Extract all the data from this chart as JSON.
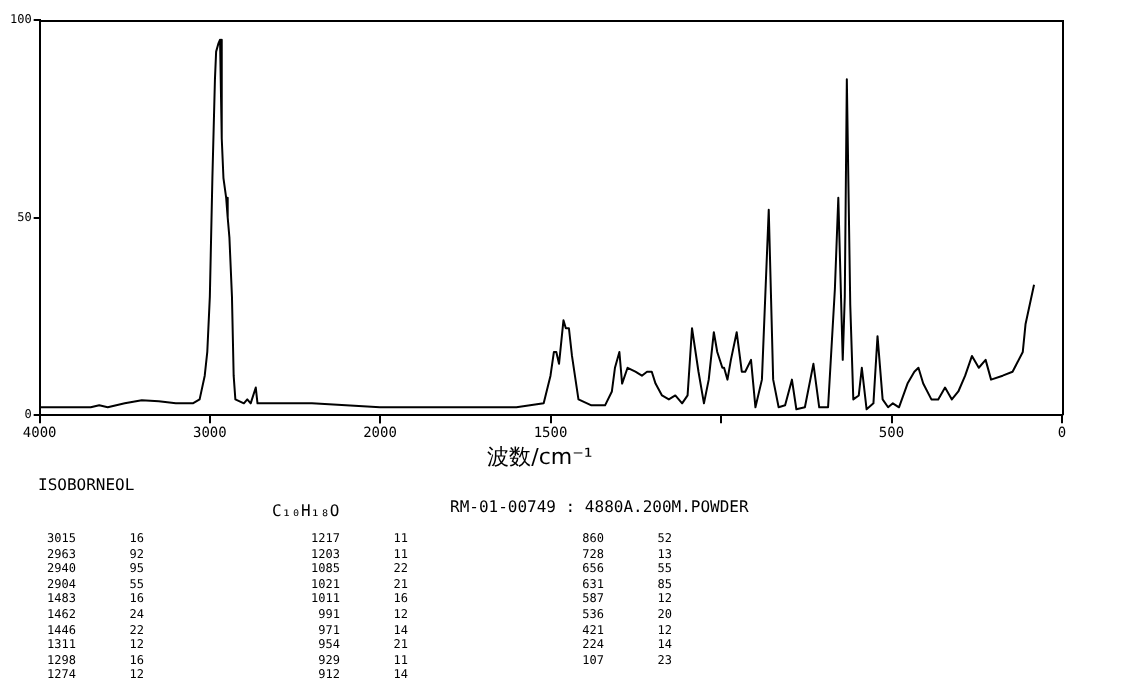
{
  "chart_data": [
    {
      "type": "line",
      "title": "ISOBORNEOL",
      "subtitle": "C₁₀H₁₈O",
      "annotations": [
        "RM-01-00749 : 4880A.200M.POWDER",
        "3015 16",
        "2963 92",
        "2940 95",
        "2904 55",
        "1483 16",
        "1462 24",
        "1446 22",
        "1311 12",
        "1298 16",
        "1274 12",
        "1217 11",
        "1203 11",
        "1085 22",
        "1021 21",
        "1011 16",
        "991 12",
        "971 14",
        "954 21",
        "929 11",
        "912 14",
        "860 52",
        "728 13",
        "656 55",
        "631 85",
        "587 12",
        "536 20",
        "421 12",
        "224 14",
        "107 23"
      ],
      "x": [
        4000,
        3700,
        3650,
        3600,
        3500,
        3400,
        3300,
        3200,
        3100,
        3060,
        3030,
        3015,
        3000,
        2985,
        2970,
        2963,
        2950,
        2940,
        2930,
        2920,
        2904,
        2895,
        2885,
        2870,
        2860,
        2850,
        2800,
        2780,
        2760,
        2730,
        2720,
        2600,
        2400,
        2200,
        2000
      ],
      "values": [
        2,
        2,
        2.5,
        2,
        3,
        3.8,
        3.5,
        3,
        3,
        4,
        10,
        16,
        30,
        60,
        85,
        92,
        94,
        95,
        70,
        60,
        55,
        50,
        45,
        30,
        10,
        4,
        3,
        4,
        3,
        7,
        3,
        3,
        3,
        2.5,
        2
      ],
      "color": "#000000",
      "marker": "none",
      "line_style": "solid",
      "grid": false,
      "legend": false,
      "xlim": [
        4000,
        2000
      ],
      "xticks": [
        4000,
        3000,
        {
          "value": 2000,
          "label": null
        }
      ],
      "ylim": [
        0,
        100
      ],
      "yticks": [
        0,
        50,
        100
      ]
    },
    {
      "type": "line",
      "xlabel": "波数/cm⁻¹",
      "x": [
        2000,
        1800,
        1600,
        1520,
        1500,
        1490,
        1483,
        1475,
        1462,
        1455,
        1446,
        1437,
        1418,
        1380,
        1340,
        1320,
        1311,
        1298,
        1290,
        1274,
        1251,
        1232,
        1217,
        1203,
        1192,
        1173,
        1153,
        1134,
        1114,
        1098,
        1085,
        1066,
        1050,
        1036,
        1021,
        1011,
        996,
        991,
        981,
        971,
        954,
        939,
        929,
        912,
        899,
        880,
        860,
        847,
        831,
        812,
        792,
        779,
        754,
        729,
        712,
        686,
        666,
        656,
        643,
        637,
        631,
        621,
        612,
        596,
        587,
        573,
        553,
        541,
        526,
        510,
        496,
        478,
        453,
        433,
        421,
        407,
        383,
        363,
        343,
        323,
        304,
        284,
        264,
        244,
        224,
        208,
        174,
        145,
        115,
        107,
        82
      ],
      "values": [
        2,
        2,
        2,
        3,
        10,
        16,
        16,
        13,
        24,
        22,
        22,
        15,
        4,
        2.5,
        2.5,
        6,
        12,
        16,
        8,
        12,
        11,
        10,
        11,
        11,
        8,
        5,
        4,
        5,
        3,
        5,
        22,
        11,
        3,
        9,
        21,
        16,
        12,
        12,
        9,
        14,
        21,
        11,
        11,
        14,
        2,
        9,
        52,
        9,
        2,
        2.5,
        9,
        1.5,
        2,
        13,
        2,
        2,
        32,
        55,
        14,
        30,
        85,
        28,
        4,
        5,
        12,
        1.5,
        3,
        20,
        4,
        2,
        3,
        2,
        8,
        11,
        12,
        8,
        4,
        4,
        7,
        4,
        6,
        10,
        15,
        12,
        14,
        9,
        10,
        11,
        16,
        23,
        33
      ],
      "color": "#000000",
      "marker": "none",
      "line_style": "solid",
      "grid": false,
      "legend": false,
      "xlim": [
        2000,
        0
      ],
      "xticks": [
        2000,
        1500,
        {
          "value": 1000,
          "label": null
        },
        500,
        0
      ],
      "ylim": [
        0,
        100
      ],
      "yticks": [
        0,
        50,
        100
      ],
      "tick_labels": "x"
    }
  ]
}
